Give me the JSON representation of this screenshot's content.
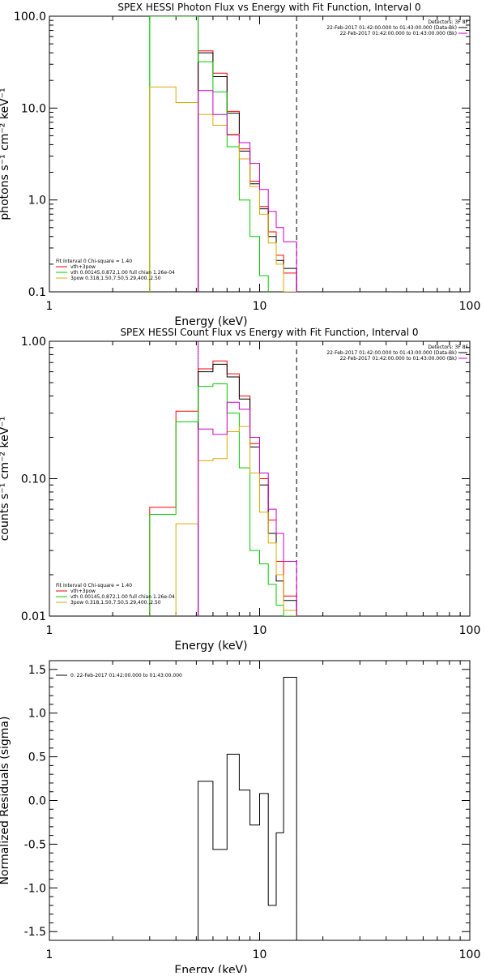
{
  "chart_data": [
    {
      "type": "line",
      "title": "SPEX HESSI Photon Flux vs Energy with Fit Function, Interval 0",
      "xlabel": "Energy (keV)",
      "ylabel": "photons s⁻¹ cm⁻² keV⁻¹",
      "xscale": "log",
      "yscale": "log",
      "xlim": [
        1,
        100
      ],
      "ylim": [
        0.1,
        100
      ],
      "xticks": [
        1,
        10,
        100
      ],
      "xtick_labels": [
        "1",
        "10",
        "100"
      ],
      "yticks": [
        0.1,
        1,
        10,
        100
      ],
      "ytick_labels": [
        "0.1",
        "1.0",
        "10.0",
        "100.0"
      ],
      "legend_top": {
        "header": "Detectors: 3F 8F",
        "items": [
          {
            "text": "22-Feb-2017 01:42:00.000 to 01:43:00.000 (Data-Bk)",
            "color": "#000000"
          },
          {
            "text": "22-Feb-2017 01:42:00.000 to 01:43:00.000 (Bk)",
            "color": "#cc00cc"
          }
        ]
      },
      "legend_bottom": {
        "header": "Fit Interval 0   Chi-square = 1.40",
        "items": [
          {
            "text": "vth+3pow",
            "color": "#ff0000"
          },
          {
            "text": "vth 0.00145,0.872,1.00  full chian 1.26e-04",
            "color": "#00cc00"
          },
          {
            "text": "3pow 0.318,1.50,7.50,5.29,400.,2.50",
            "color": "#ddaa00"
          }
        ]
      },
      "vlines": [
        {
          "x": 3.0,
          "color": "#00cc00",
          "style": "solid"
        },
        {
          "x": 5.1,
          "color": "#009900",
          "style": "dotted"
        },
        {
          "x": 5.1,
          "color": "#cc00cc",
          "style": "solid"
        },
        {
          "x": 15.0,
          "color": "#000000",
          "style": "dashed"
        }
      ],
      "series": [
        {
          "name": "vth+3pow",
          "color": "#ff0000",
          "edges": [
            5.1,
            6.0,
            7.0,
            8.0,
            9.0,
            10.0,
            11.0,
            12.0,
            13.0,
            15.0
          ],
          "values": [
            42,
            24,
            9.2,
            3.6,
            1.6,
            0.85,
            0.45,
            0.25,
            0.16
          ]
        },
        {
          "name": "Data-Bk",
          "color": "#000000",
          "edges": [
            5.1,
            6.0,
            7.0,
            8.0,
            9.0,
            10.0,
            11.0,
            12.0,
            13.0,
            15.0
          ],
          "values": [
            40,
            22,
            8.8,
            3.4,
            1.5,
            0.8,
            0.4,
            0.22,
            0.18
          ]
        },
        {
          "name": "vth",
          "color": "#00cc00",
          "edges": [
            3.0,
            5.1,
            6.0,
            7.0,
            8.0,
            9.0,
            10.0,
            11.0
          ],
          "values": [
            100,
            32,
            15,
            3.8,
            1.0,
            0.4,
            0.15
          ]
        },
        {
          "name": "3pow",
          "color": "#ddaa00",
          "edges": [
            3.0,
            4.0,
            5.1,
            6.0,
            7.0,
            8.0,
            9.0,
            10.0,
            11.0,
            12.0,
            13.0,
            15.0
          ],
          "values": [
            17,
            11.5,
            8.5,
            6.5,
            5.2,
            2.8,
            1.4,
            0.7,
            0.34,
            0.2,
            0.1
          ]
        },
        {
          "name": "Bk",
          "color": "#cc00cc",
          "edges": [
            5.1,
            6.0,
            7.0,
            8.0,
            9.0,
            10.0,
            11.0,
            12.0,
            13.0,
            15.0
          ],
          "values": [
            15.5,
            8.5,
            5.1,
            4.2,
            2.5,
            1.3,
            0.75,
            0.5,
            0.35
          ]
        }
      ]
    },
    {
      "type": "line",
      "title": "SPEX HESSI Count Flux vs Energy with Fit Function, Interval 0",
      "xlabel": "Energy (keV)",
      "ylabel": "counts s⁻¹ cm⁻² keV⁻¹",
      "xscale": "log",
      "yscale": "log",
      "xlim": [
        1,
        100
      ],
      "ylim": [
        0.01,
        1
      ],
      "xticks": [
        1,
        10,
        100
      ],
      "xtick_labels": [
        "1",
        "10",
        "100"
      ],
      "yticks": [
        0.01,
        0.1,
        1
      ],
      "ytick_labels": [
        "0.01",
        "0.10",
        "1.00"
      ],
      "legend_top": {
        "header": "Detectors: 3F 8F",
        "items": [
          {
            "text": "22-Feb-2017 01:42:00.000 to 01:43:00.000 (Data-Bk)",
            "color": "#000000"
          },
          {
            "text": "22-Feb-2017 01:42:00.000 to 01:43:00.000 (Bk)",
            "color": "#cc00cc"
          }
        ]
      },
      "legend_bottom": {
        "header": "Fit Interval 0   Chi-square = 1.40",
        "items": [
          {
            "text": "vth+3pow",
            "color": "#ff0000"
          },
          {
            "text": "vth 0.00145,0.872,1.00  full chian 1.26e-04",
            "color": "#00cc00"
          },
          {
            "text": "3pow 0.318,1.50,7.50,5.29,400.,2.50",
            "color": "#ddaa00"
          }
        ]
      },
      "vlines": [
        {
          "x": 5.1,
          "color": "#000000",
          "style": "dotted"
        },
        {
          "x": 5.1,
          "color": "#cc00cc",
          "style": "solid"
        },
        {
          "x": 15.0,
          "color": "#000000",
          "style": "dashed"
        }
      ],
      "series": [
        {
          "name": "vth+3pow",
          "color": "#ff0000",
          "edges": [
            3.0,
            4.0,
            5.1,
            6.0,
            7.0,
            8.0,
            9.0,
            10.0,
            11.0,
            12.0,
            13.0,
            15.0
          ],
          "values": [
            0.062,
            0.31,
            0.63,
            0.72,
            0.58,
            0.4,
            0.18,
            0.1,
            0.05,
            0.025,
            0.014
          ]
        },
        {
          "name": "Data-Bk",
          "color": "#000000",
          "edges": [
            5.1,
            6.0,
            7.0,
            8.0,
            9.0,
            10.0,
            11.0,
            12.0,
            13.0,
            15.0
          ],
          "values": [
            0.6,
            0.68,
            0.55,
            0.38,
            0.17,
            0.09,
            0.04,
            0.018,
            0.013
          ]
        },
        {
          "name": "vth",
          "color": "#00cc00",
          "edges": [
            3.0,
            4.0,
            5.1,
            6.0,
            7.0,
            8.0,
            9.0,
            10.0,
            11.0,
            12.0,
            13.0,
            15.0
          ],
          "values": [
            0.055,
            0.26,
            0.47,
            0.49,
            0.3,
            0.12,
            0.03,
            0.024,
            0.017,
            0.012,
            0.01
          ]
        },
        {
          "name": "3pow",
          "color": "#ddaa00",
          "edges": [
            4.0,
            5.1,
            6.0,
            7.0,
            8.0,
            9.0,
            10.0,
            11.0,
            12.0,
            13.0,
            15.0
          ],
          "values": [
            0.047,
            0.135,
            0.14,
            0.22,
            0.24,
            0.11,
            0.057,
            0.034,
            0.02,
            0.011
          ]
        },
        {
          "name": "Bk",
          "color": "#cc00cc",
          "edges": [
            5.1,
            6.0,
            7.0,
            8.0,
            9.0,
            10.0,
            11.0,
            12.0,
            13.0,
            15.0
          ],
          "values": [
            0.23,
            0.21,
            0.36,
            0.32,
            0.2,
            0.11,
            0.06,
            0.04,
            0.025
          ]
        }
      ]
    },
    {
      "type": "line",
      "title": "",
      "xlabel": "Energy (keV)",
      "ylabel": "Normalized Residuals (sigma)",
      "xscale": "log",
      "yscale": "linear",
      "xlim": [
        1,
        100
      ],
      "ylim": [
        -1.6,
        1.6
      ],
      "xticks": [
        1,
        10,
        100
      ],
      "xtick_labels": [
        "1",
        "10",
        "100"
      ],
      "yticks": [
        -1.5,
        -1.0,
        -0.5,
        0.0,
        0.5,
        1.0,
        1.5
      ],
      "ytick_labels": [
        "-1.5",
        "-1.0",
        "-0.5",
        "0.0",
        "0.5",
        "1.0",
        "1.5"
      ],
      "legend_top": {
        "header": "",
        "items": [
          {
            "text": "0. 22-Feb-2017 01:42:00.000 to 01:43:00.000",
            "color": "#000000"
          }
        ]
      },
      "series": [
        {
          "name": "0. 22-Feb-2017 01:42:00.000 to 01:43:00.000",
          "color": "#000000",
          "edges": [
            5.1,
            6.0,
            7.0,
            8.0,
            9.0,
            10.0,
            11.0,
            12.0,
            13.0,
            15.0
          ],
          "values": [
            0.22,
            -0.56,
            0.53,
            0.12,
            -0.28,
            0.08,
            -1.2,
            -0.37,
            1.41
          ]
        }
      ]
    }
  ]
}
